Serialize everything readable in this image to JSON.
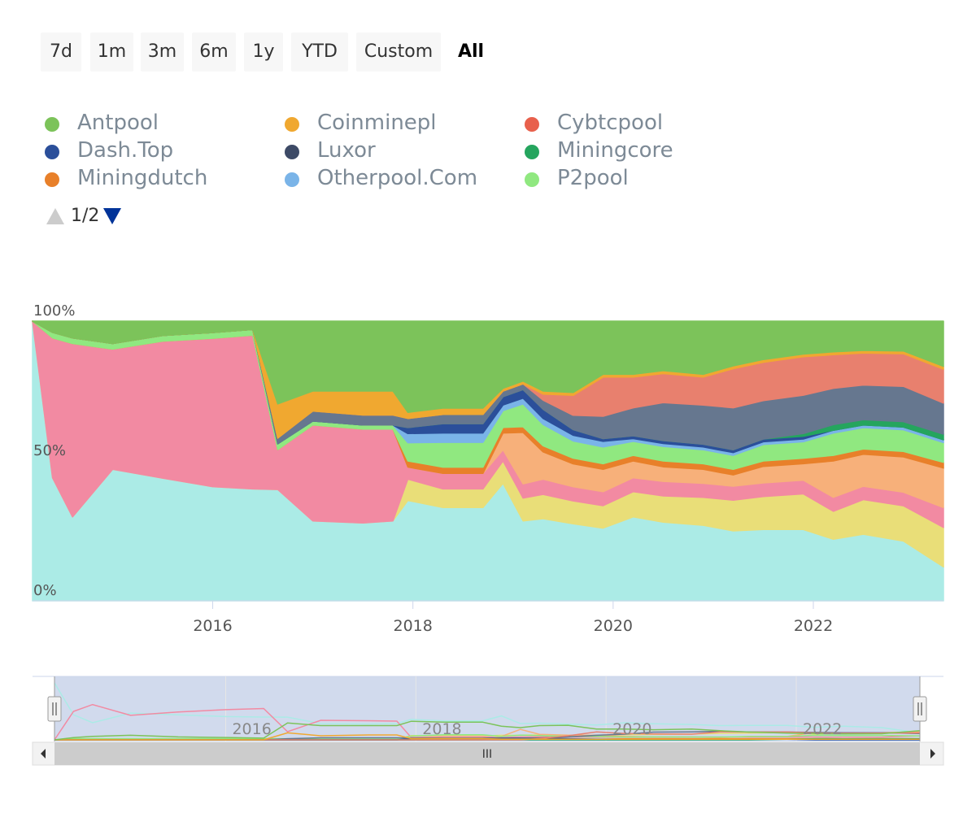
{
  "range_selector": {
    "buttons": [
      "7d",
      "1m",
      "3m",
      "6m",
      "1y",
      "YTD",
      "Custom",
      "All"
    ],
    "active": "All"
  },
  "legend": {
    "items": [
      {
        "label": "Antpool",
        "color": "#7cc35a"
      },
      {
        "label": "Coinminepl",
        "color": "#f0a830"
      },
      {
        "label": "Cybtcpool",
        "color": "#e8604c"
      },
      {
        "label": "Dash.Top",
        "color": "#2b4f9a"
      },
      {
        "label": "Luxor",
        "color": "#3d4a66"
      },
      {
        "label": "Miningcore",
        "color": "#25a55e"
      },
      {
        "label": "Miningdutch",
        "color": "#e8802a"
      },
      {
        "label": "Otherpool.Com",
        "color": "#7ab4e8"
      },
      {
        "label": "P2pool",
        "color": "#90e880"
      }
    ],
    "pager": "1/2"
  },
  "chart_data": {
    "type": "area",
    "stacking": "percent",
    "y_tick_labels": [
      "0%",
      "50%",
      "100%"
    ],
    "x_tick_labels": [
      "2016",
      "2018",
      "2020",
      "2022"
    ],
    "x_range": [
      2014.2,
      2023.3
    ],
    "ylim": [
      0,
      100
    ],
    "x": [
      2014.2,
      2014.4,
      2014.6,
      2015.0,
      2015.5,
      2016.0,
      2016.4,
      2016.65,
      2017.0,
      2017.5,
      2017.8,
      2017.95,
      2018.3,
      2018.7,
      2018.9,
      2019.1,
      2019.3,
      2019.6,
      2019.9,
      2020.2,
      2020.5,
      2020.9,
      2021.2,
      2021.5,
      2021.9,
      2022.2,
      2022.5,
      2022.9,
      2023.3
    ],
    "series": [
      {
        "name": "",
        "color": "#abebe6",
        "values": [
          100,
          44,
          30,
          47,
          43,
          40,
          40,
          39,
          40,
          39,
          40,
          33,
          30,
          30,
          42,
          28,
          27,
          27,
          26,
          30,
          27,
          27,
          25,
          26,
          26,
          22,
          25,
          22,
          12
        ]
      },
      {
        "name": "",
        "color": "#e9de78",
        "values": [
          0,
          0,
          0,
          0,
          0,
          0,
          0,
          0,
          0,
          0,
          0,
          7,
          6,
          6,
          8,
          8,
          8,
          8,
          8,
          9,
          9,
          10,
          11,
          12,
          13,
          10,
          13,
          13,
          14
        ]
      },
      {
        "name": "",
        "color": "#f28aa2",
        "values": [
          0,
          50,
          62,
          43,
          48,
          52,
          55,
          14,
          48,
          47,
          46,
          4,
          5,
          5,
          4,
          5,
          5,
          5,
          5,
          5,
          5,
          5,
          5,
          5,
          5,
          5,
          5,
          5,
          7
        ]
      },
      {
        "name": "",
        "color": "#f7b07a",
        "values": [
          0,
          0,
          0,
          0,
          0,
          0,
          0,
          0,
          0,
          0,
          0,
          0,
          0,
          0,
          6,
          18,
          9,
          8,
          8,
          6,
          5,
          5,
          4,
          6,
          6,
          13,
          12,
          13,
          14
        ]
      },
      {
        "name": "Miningdutch",
        "color": "#e8802a",
        "values": [
          0,
          0,
          0,
          0,
          0,
          0,
          0,
          0,
          0,
          0,
          0,
          2,
          2,
          2,
          2,
          2,
          2,
          2,
          2,
          2,
          2,
          2,
          2,
          2,
          2,
          2,
          2,
          2,
          2
        ]
      },
      {
        "name": "P2pool",
        "color": "#90e880",
        "values": [
          0,
          2,
          2,
          2,
          2,
          2,
          2,
          2,
          2,
          2,
          2,
          6,
          8,
          8,
          6,
          8,
          7,
          6,
          6,
          5,
          5,
          5,
          5,
          6,
          6,
          8,
          8,
          8,
          7
        ]
      },
      {
        "name": "Otherpool.Com",
        "color": "#7ab4e8",
        "values": [
          0,
          0,
          0,
          0,
          0,
          0,
          0,
          0,
          0,
          0,
          0,
          3,
          3,
          3,
          2,
          2,
          2,
          2,
          2,
          1,
          1,
          1,
          1,
          1,
          1,
          1,
          1,
          1,
          1
        ]
      },
      {
        "name": "Dash.Top",
        "color": "#2b4f9a",
        "values": [
          0,
          0,
          0,
          0,
          0,
          0,
          0,
          0,
          0,
          0,
          0,
          2,
          3,
          3,
          3,
          3,
          3,
          2,
          1,
          1,
          1,
          1,
          1,
          1,
          1,
          0,
          0,
          0,
          0
        ]
      },
      {
        "name": "Miningcore",
        "color": "#25a55e",
        "values": [
          0,
          0,
          0,
          0,
          0,
          0,
          0,
          0,
          0,
          0,
          0,
          0,
          0,
          0,
          0,
          0,
          0,
          0,
          0,
          0,
          0,
          0,
          0,
          0,
          1,
          2,
          2,
          2,
          2
        ]
      },
      {
        "name": "Luxor",
        "color": "#66778f",
        "values": [
          0,
          0,
          0,
          0,
          0,
          0,
          0,
          2,
          5,
          5,
          5,
          3,
          3,
          3,
          2,
          2,
          3,
          5,
          8,
          10,
          13,
          14,
          15,
          14,
          14,
          13,
          13,
          13,
          11
        ]
      },
      {
        "name": "Cybtcpool",
        "color": "#e8806e",
        "values": [
          0,
          0,
          0,
          0,
          0,
          0,
          0,
          0,
          0,
          0,
          0,
          0,
          0,
          0,
          0,
          0,
          2,
          7,
          14,
          11,
          10,
          10,
          14,
          14,
          14,
          12,
          12,
          12,
          12
        ]
      },
      {
        "name": "Coinminepl",
        "color": "#f0a830",
        "values": [
          0,
          0,
          0,
          0,
          0,
          0,
          0,
          12,
          10,
          12,
          12,
          2,
          2,
          2,
          1,
          1,
          1,
          1,
          1,
          1,
          1,
          1,
          1,
          1,
          1,
          1,
          1,
          1,
          1
        ]
      },
      {
        "name": "Antpool",
        "color": "#7cc35a",
        "values": [
          0,
          4,
          6,
          8,
          5,
          4,
          3,
          29,
          35,
          35,
          35,
          30,
          28,
          28,
          24,
          21,
          23,
          25,
          19,
          19,
          17,
          19,
          16,
          14,
          12,
          11,
          11,
          11,
          16
        ]
      }
    ]
  },
  "navigator": {
    "x_tick_labels": [
      "2016",
      "2018",
      "2020",
      "2022"
    ],
    "scrollbar_grip": "III"
  }
}
